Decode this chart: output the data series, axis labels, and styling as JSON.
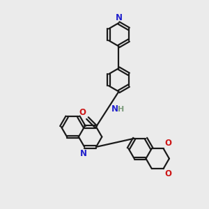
{
  "bg_color": "#ebebeb",
  "bond_color": "#1a1a1a",
  "n_color": "#2020cc",
  "o_color": "#cc1515",
  "h_color": "#7a9a7a",
  "lw": 1.6,
  "R": 0.18,
  "xlim": [
    -1.6,
    1.6
  ],
  "ylim": [
    -1.6,
    1.6
  ]
}
